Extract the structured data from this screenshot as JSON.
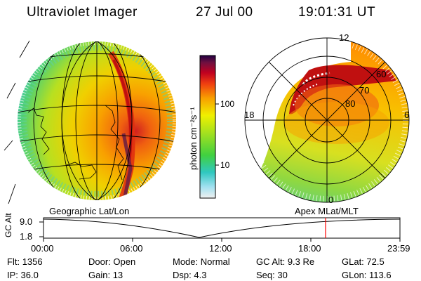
{
  "header": {
    "title": "Ultraviolet Imager",
    "date": "27 Jul 00",
    "time": "19:01:31 UT"
  },
  "colorbar": {
    "unit_label": "photon cm⁻²s⁻¹",
    "ticks": [
      "100",
      "10"
    ]
  },
  "polar_plot": {
    "mlt_labels": [
      "12",
      "18",
      "6",
      "0"
    ],
    "lat_labels": [
      "60",
      "70",
      "80"
    ]
  },
  "panel_labels": {
    "left": "Geographic Lat/Lon",
    "right": "Apex MLat/MLT"
  },
  "altitude_strip": {
    "axis_label": "GC Alt",
    "y_ticks": [
      "9.0",
      "1.8"
    ],
    "x_ticks": [
      "00:00",
      "06:00",
      "12:00",
      "18:00",
      "23:59"
    ],
    "marker_time": "19:01"
  },
  "footer": {
    "row1": [
      {
        "label": "Flt:",
        "value": "1356"
      },
      {
        "label": "Door:",
        "value": "Open"
      },
      {
        "label": "Mode:",
        "value": "Normal"
      },
      {
        "label": "GC Alt:",
        "value": "9.3 Re"
      },
      {
        "label": "GLat:",
        "value": "72.5"
      }
    ],
    "row2": [
      {
        "label": "IP:",
        "value": "36.0"
      },
      {
        "label": "Gain:",
        "value": "13"
      },
      {
        "label": "Dsp:",
        "value": "4.3"
      },
      {
        "label": "Seq:",
        "value": "30"
      },
      {
        "label": "GLon:",
        "value": "113.6"
      }
    ]
  },
  "colors": {
    "marker": "#ff0000",
    "aurora_peak": "#cc0000"
  }
}
